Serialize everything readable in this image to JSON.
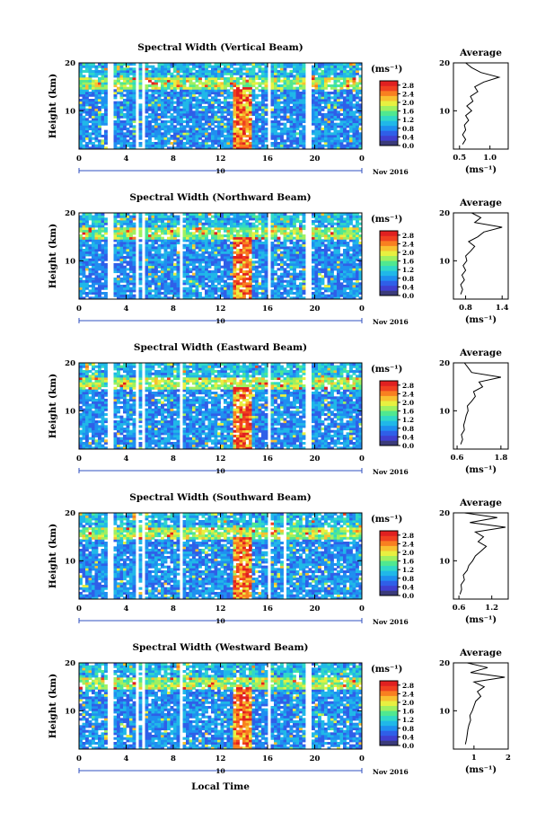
{
  "x_axis_label": "Local Time",
  "date_label": "Nov 2016",
  "day_label": "10",
  "average_title": "Average",
  "colorbar": {
    "unit": "(ms⁻¹)",
    "tick_labels": [
      "2.8",
      "2.4",
      "2.0",
      "1.6",
      "1.2",
      "0.8",
      "0.4",
      "0.0"
    ],
    "range": [
      0,
      3.0
    ],
    "colors": [
      "#3b3b7a",
      "#4040d0",
      "#2f5fe8",
      "#1f8ff0",
      "#20b8e8",
      "#30d8c8",
      "#50e890",
      "#a0f060",
      "#e8f040",
      "#f8c030",
      "#f88020",
      "#f04020",
      "#e02020"
    ]
  },
  "chart_data": [
    {
      "type": "heatmap",
      "title": "Spectral Width (Vertical Beam)",
      "ylabel": "Height (km)",
      "xlabel": "Local Time",
      "xlim": [
        0,
        24
      ],
      "ylim": [
        2,
        20
      ],
      "xticks": [
        "0",
        "4",
        "8",
        "12",
        "16",
        "20",
        "0"
      ],
      "yticks": [
        "10",
        "20"
      ],
      "gaps": [
        [
          2.4,
          2.8
        ],
        [
          4.8,
          5.0
        ],
        [
          5.3,
          5.6
        ],
        [
          16.0,
          16.3
        ],
        [
          19.3,
          19.6
        ]
      ],
      "average": {
        "title": "Average",
        "xlabel": "(ms⁻¹)",
        "xticks": [
          "0.5",
          "1.0"
        ],
        "xlim": [
          0.4,
          1.3
        ],
        "heights": [
          3,
          4,
          5,
          6,
          7,
          8,
          9,
          10,
          11,
          12,
          13,
          14,
          15,
          16,
          17,
          18,
          19,
          20
        ],
        "values": [
          0.55,
          0.6,
          0.55,
          0.6,
          0.58,
          0.65,
          0.6,
          0.7,
          0.62,
          0.72,
          0.68,
          0.8,
          0.75,
          0.9,
          1.15,
          0.85,
          0.7,
          0.6
        ]
      }
    },
    {
      "type": "heatmap",
      "title": "Spectral Width (Northward Beam)",
      "ylabel": "Height (km)",
      "xlabel": "Local Time",
      "xlim": [
        0,
        24
      ],
      "ylim": [
        2,
        20
      ],
      "xticks": [
        "0",
        "4",
        "8",
        "12",
        "16",
        "20",
        "0"
      ],
      "yticks": [
        "10",
        "20"
      ],
      "gaps": [
        [
          2.4,
          2.8
        ],
        [
          4.8,
          5.0
        ],
        [
          5.3,
          5.6
        ],
        [
          8.4,
          8.7
        ],
        [
          16.0,
          16.3
        ],
        [
          19.3,
          19.6
        ]
      ],
      "average": {
        "title": "Average",
        "xlabel": "(ms⁻¹)",
        "xticks": [
          "0.8",
          "1.4"
        ],
        "xlim": [
          0.6,
          1.5
        ],
        "heights": [
          3,
          4,
          5,
          6,
          7,
          8,
          9,
          10,
          11,
          12,
          13,
          14,
          15,
          16,
          17,
          18,
          19,
          20
        ],
        "values": [
          0.72,
          0.75,
          0.72,
          0.78,
          0.74,
          0.8,
          0.76,
          0.82,
          0.8,
          0.88,
          0.95,
          0.85,
          1.0,
          1.1,
          1.4,
          0.95,
          1.05,
          0.9
        ]
      }
    },
    {
      "type": "heatmap",
      "title": "Spectral Width (Eastward Beam)",
      "ylabel": "Height (km)",
      "xlabel": "Local Time",
      "xlim": [
        0,
        24
      ],
      "ylim": [
        2,
        20
      ],
      "xticks": [
        "0",
        "4",
        "8",
        "12",
        "16",
        "20",
        "0"
      ],
      "yticks": [
        "10",
        "20"
      ],
      "gaps": [
        [
          2.4,
          2.8
        ],
        [
          4.8,
          5.0
        ],
        [
          5.3,
          5.6
        ],
        [
          8.4,
          8.7
        ],
        [
          16.0,
          16.3
        ],
        [
          19.3,
          19.6
        ]
      ],
      "average": {
        "title": "Average",
        "xlabel": "(ms⁻¹)",
        "xticks": [
          "0.6",
          "1.8"
        ],
        "xlim": [
          0.5,
          2.0
        ],
        "heights": [
          3,
          4,
          5,
          6,
          7,
          8,
          9,
          10,
          11,
          12,
          13,
          14,
          15,
          16,
          17,
          18,
          19,
          20
        ],
        "values": [
          0.7,
          0.75,
          0.72,
          0.8,
          0.78,
          0.82,
          0.85,
          0.9,
          0.88,
          1.0,
          1.1,
          1.05,
          1.3,
          1.2,
          1.8,
          1.0,
          0.9,
          0.8
        ]
      }
    },
    {
      "type": "heatmap",
      "title": "Spectral Width (Southward Beam)",
      "ylabel": "Height (km)",
      "xlabel": "Local Time",
      "xlim": [
        0,
        24
      ],
      "ylim": [
        2,
        20
      ],
      "xticks": [
        "0",
        "4",
        "8",
        "12",
        "16",
        "20",
        "0"
      ],
      "yticks": [
        "10",
        "20"
      ],
      "gaps": [
        [
          2.4,
          2.8
        ],
        [
          4.8,
          5.0
        ],
        [
          5.3,
          5.6
        ],
        [
          8.4,
          8.7
        ],
        [
          16.0,
          16.3
        ],
        [
          17.4,
          17.7
        ]
      ],
      "average": {
        "title": "Average",
        "xlabel": "(ms⁻¹)",
        "xticks": [
          "0.6",
          "1.2"
        ],
        "xlim": [
          0.5,
          1.5
        ],
        "heights": [
          3,
          4,
          5,
          6,
          7,
          8,
          9,
          10,
          11,
          12,
          13,
          14,
          15,
          16,
          17,
          18,
          19,
          20
        ],
        "values": [
          0.62,
          0.65,
          0.64,
          0.7,
          0.68,
          0.75,
          0.78,
          0.85,
          0.9,
          1.0,
          1.1,
          0.95,
          1.05,
          0.9,
          1.45,
          0.8,
          1.3,
          0.7
        ]
      }
    },
    {
      "type": "heatmap",
      "title": "Spectral Width (Westward Beam)",
      "ylabel": "Height (km)",
      "xlabel": "Local Time",
      "xlim": [
        0,
        24
      ],
      "ylim": [
        2,
        20
      ],
      "xticks": [
        "0",
        "4",
        "8",
        "12",
        "16",
        "20",
        "0"
      ],
      "yticks": [
        "10",
        "20"
      ],
      "gaps": [
        [
          2.4,
          2.8
        ],
        [
          4.8,
          5.0
        ],
        [
          5.3,
          5.6
        ],
        [
          8.4,
          8.7
        ],
        [
          16.0,
          16.3
        ],
        [
          19.3,
          19.6
        ]
      ],
      "average": {
        "title": "Average",
        "xlabel": "(ms⁻¹)",
        "xticks": [
          "1",
          "2"
        ],
        "xlim": [
          0.4,
          2.0
        ],
        "heights": [
          3,
          4,
          5,
          6,
          7,
          8,
          9,
          10,
          11,
          12,
          13,
          14,
          15,
          16,
          17,
          18,
          19,
          20
        ],
        "values": [
          0.75,
          0.78,
          0.8,
          0.82,
          0.85,
          0.9,
          0.88,
          0.95,
          1.0,
          1.05,
          1.2,
          1.1,
          1.3,
          1.0,
          1.9,
          0.9,
          1.4,
          0.8
        ]
      }
    }
  ]
}
